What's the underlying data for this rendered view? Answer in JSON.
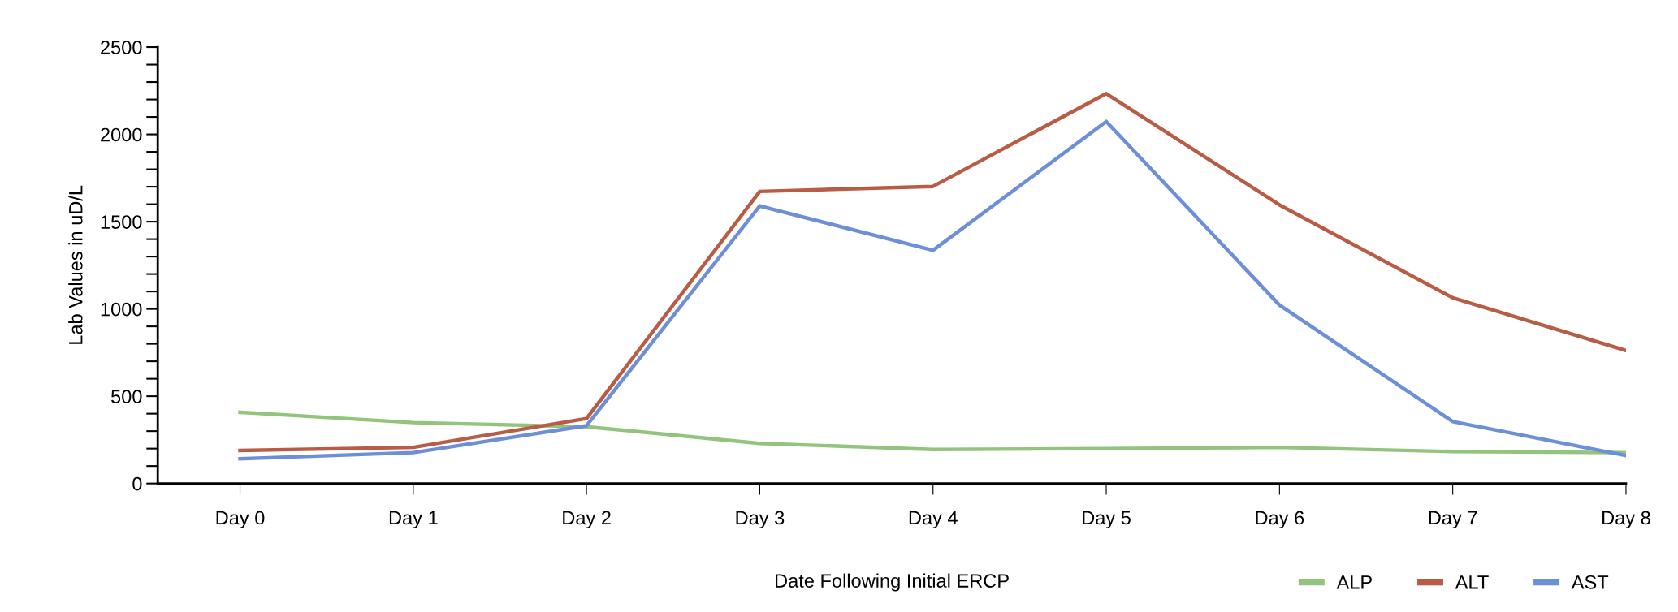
{
  "chart_data": {
    "type": "line",
    "xlabel": "Date Following Initial ERCP",
    "ylabel": "Lab Values in uD/L",
    "categories": [
      "Day 0",
      "Day 1",
      "Day 2",
      "Day 3",
      "Day 4",
      "Day 5",
      "Day 6",
      "Day 7",
      "Day 8"
    ],
    "series": [
      {
        "name": "ALP",
        "color": "#93c47d",
        "values": [
          408,
          349,
          325,
          230,
          195,
          200,
          207,
          183,
          177
        ]
      },
      {
        "name": "ALT",
        "color": "#b85c45",
        "values": [
          189,
          207,
          372,
          1673,
          1702,
          2234,
          1596,
          1064,
          762
        ]
      },
      {
        "name": "AST",
        "color": "#6d8fd8",
        "values": [
          142,
          177,
          331,
          1590,
          1336,
          2074,
          1022,
          355,
          160
        ]
      }
    ],
    "ylim": [
      0,
      2500
    ],
    "yticks": [
      0,
      {
        "value": 100,
        "label": null
      },
      {
        "value": 200,
        "label": null
      },
      {
        "value": 300,
        "label": null
      },
      {
        "value": 400,
        "label": null
      },
      500,
      {
        "value": 600,
        "label": null
      },
      {
        "value": 700,
        "label": null
      },
      {
        "value": 800,
        "label": null
      },
      {
        "value": 900,
        "label": null
      },
      1000,
      {
        "value": 1100,
        "label": null
      },
      {
        "value": 1200,
        "label": null
      },
      {
        "value": 1300,
        "label": null
      },
      {
        "value": 1400,
        "label": null
      },
      1500,
      {
        "value": 1600,
        "label": null
      },
      {
        "value": 1700,
        "label": null
      },
      {
        "value": 1800,
        "label": null
      },
      {
        "value": 1900,
        "label": null
      },
      2000,
      {
        "value": 2100,
        "label": null
      },
      {
        "value": 2200,
        "label": null
      },
      {
        "value": 2300,
        "label": null
      },
      {
        "value": 2400,
        "label": null
      },
      2500
    ],
    "grid": false,
    "legend": "bottom right",
    "marker": "none",
    "line_style": "solid"
  }
}
